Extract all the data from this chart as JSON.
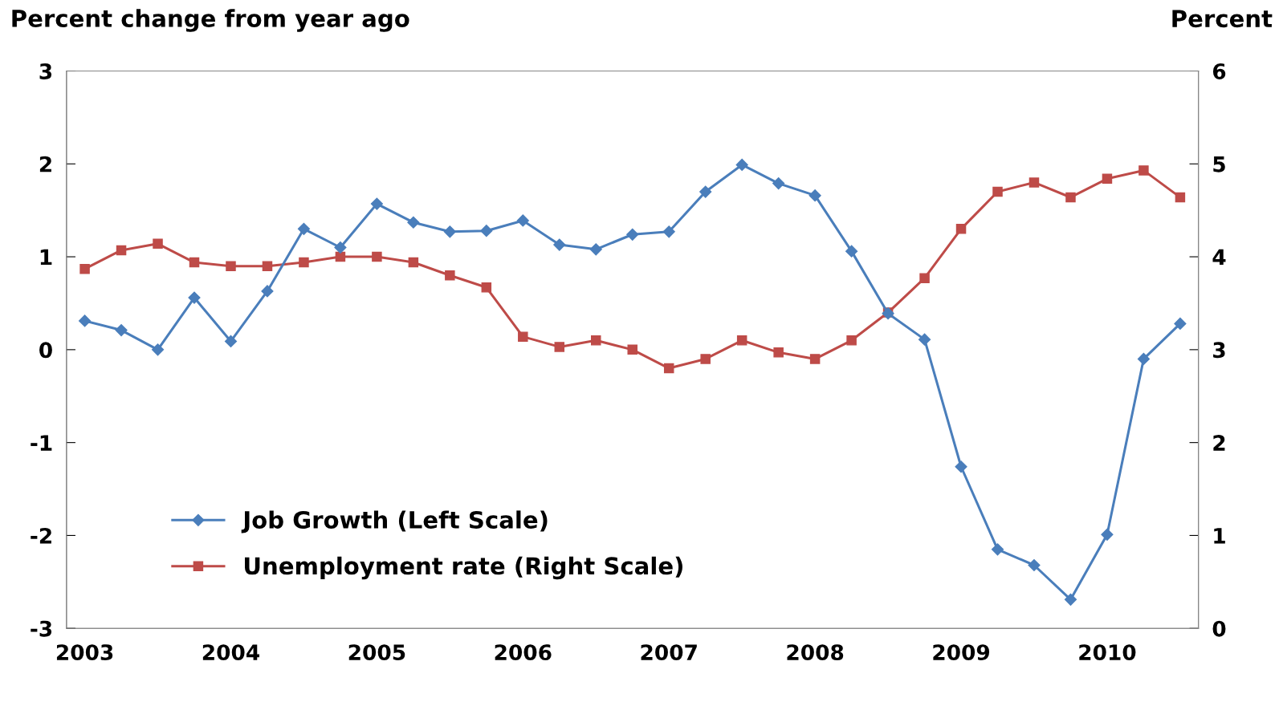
{
  "chart_data": {
    "type": "line",
    "categories": [
      "2003",
      null,
      null,
      null,
      "2004",
      null,
      null,
      null,
      "2005",
      null,
      null,
      null,
      "2006",
      null,
      null,
      null,
      "2007",
      null,
      null,
      null,
      "2008",
      null,
      null,
      null,
      "2009",
      null,
      null,
      null,
      "2010",
      null,
      null
    ],
    "series": [
      {
        "name": "Job Growth (Left Scale)",
        "color": "#4a7ebb",
        "marker": "diamond",
        "values": [
          0.31,
          0.21,
          0,
          0.56,
          0.09,
          0.63,
          1.3,
          1.1,
          1.57,
          1.37,
          1.27,
          1.28,
          1.39,
          1.13,
          1.08,
          1.24,
          1.27,
          1.7,
          1.99,
          1.79,
          1.66,
          1.06,
          0.39,
          0.11,
          -1.26,
          -2.15,
          -2.32,
          -2.69,
          -1.99,
          -0.1,
          0.28
        ]
      },
      {
        "name": "Unemployment rate (Right Scale)",
        "color": "#be4b48",
        "marker": "square",
        "axis": "y2",
        "values": [
          3.87,
          4.07,
          4.14,
          3.94,
          3.9,
          3.9,
          3.94,
          4.0,
          4.0,
          3.94,
          3.8,
          3.67,
          3.14,
          3.03,
          3.1,
          3.0,
          2.8,
          2.9,
          3.1,
          2.97,
          2.9,
          3.1,
          3.4,
          3.77,
          4.3,
          4.7,
          4.8,
          4.64,
          4.84,
          4.93,
          4.64
        ]
      }
    ],
    "ylabel": "Percent change from year ago",
    "y2label": "Percent",
    "ylim": [
      -3,
      3
    ],
    "yticks": [
      -3,
      -2,
      -1,
      0,
      1,
      2,
      3
    ],
    "y2lim": [
      0,
      6
    ],
    "y2ticks": [
      0,
      1,
      2,
      3,
      4,
      5,
      6
    ],
    "legend": "bottom left",
    "grid": false,
    "line_style": "solid"
  }
}
